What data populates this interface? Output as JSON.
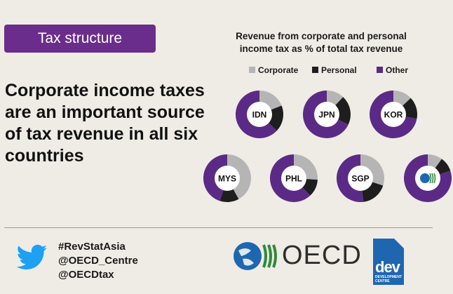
{
  "tag": {
    "label": "Tax structure"
  },
  "headline": "Corporate income taxes are an important source of tax revenue in all six countries",
  "colors": {
    "corporate": "#b5b5b5",
    "personal": "#1e1e1e",
    "other": "#5b2a86",
    "hole": "#ffffff",
    "tag": "#6b2d8b",
    "background": "#efece5"
  },
  "chart_data": {
    "type": "pie",
    "title": "Revenue from corporate and personal income tax as % of total tax revenue",
    "title_lines": [
      "Revenue from corporate and personal",
      "income tax as % of total tax revenue"
    ],
    "legend": [
      "Corporate",
      "Personal",
      "Other"
    ],
    "legend_placement": "top",
    "series": [
      {
        "name": "Corporate"
      },
      {
        "name": "Personal"
      },
      {
        "name": "Other"
      }
    ],
    "pies": [
      {
        "label": "IDN",
        "values": [
          19,
          18,
          63
        ]
      },
      {
        "label": "JPN",
        "values": [
          12,
          20,
          68
        ]
      },
      {
        "label": "KOR",
        "values": [
          13,
          15,
          72
        ]
      },
      {
        "label": "MYS",
        "values": [
          42,
          13,
          45
        ]
      },
      {
        "label": "PHL",
        "values": [
          26,
          12,
          62
        ]
      },
      {
        "label": "SGP",
        "values": [
          30,
          18,
          52
        ]
      },
      {
        "label": "",
        "values": [
          10,
          10,
          80
        ]
      }
    ]
  },
  "footer": {
    "handles": [
      "#RevStatAsia",
      "@OECD_Centre",
      "@OECDtax"
    ],
    "oecd_text": "OECD",
    "dev_text": "dev",
    "dev_sub": [
      "DEVELOPMENT",
      "CENTRE"
    ]
  }
}
